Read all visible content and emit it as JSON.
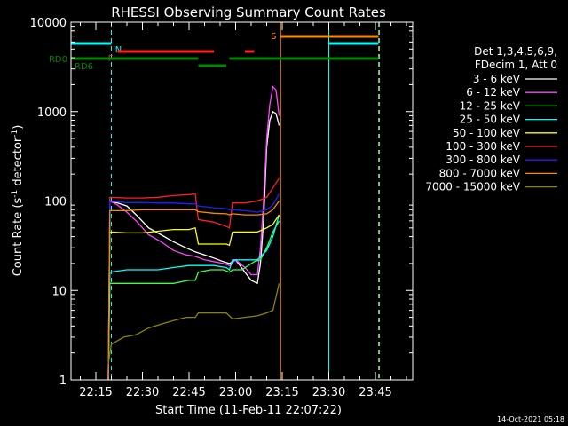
{
  "chart_data": {
    "type": "line",
    "title": "RHESSI Observing Summary Count Rates",
    "xlabel": "Start Time (11-Feb-11 22:07:22)",
    "ylabel_main": "Count Rate (s",
    "ylabel_sup1": "-1",
    "ylabel_mid": " detector",
    "ylabel_sup2": "-1",
    "ylabel_end": ")",
    "y_scale": "log",
    "ylim": [
      1,
      10000
    ],
    "xlim_min": [
      7,
      117
    ],
    "x_ticks": [
      {
        "min": 15,
        "label": "22:15"
      },
      {
        "min": 30,
        "label": "22:30"
      },
      {
        "min": 45,
        "label": "22:45"
      },
      {
        "min": 60,
        "label": "23:00"
      },
      {
        "min": 75,
        "label": "23:15"
      },
      {
        "min": 90,
        "label": "23:30"
      },
      {
        "min": 105,
        "label": "23:45"
      }
    ],
    "y_ticks": [
      {
        "v": 1,
        "label": "1"
      },
      {
        "v": 10,
        "label": "10"
      },
      {
        "v": 100,
        "label": "100"
      },
      {
        "v": 1000,
        "label": "1000"
      },
      {
        "v": 10000,
        "label": "10000"
      }
    ],
    "legend_title": [
      "Det 1,3,4,5,6,9,",
      "FDecim 1, Att 0"
    ],
    "series": [
      {
        "name": "3 - 6 keV",
        "color": "#ffffff",
        "points": [
          [
            19,
            1
          ],
          [
            19.5,
            100
          ],
          [
            22,
            95
          ],
          [
            25,
            88
          ],
          [
            28,
            70
          ],
          [
            32,
            50
          ],
          [
            36,
            42
          ],
          [
            40,
            35
          ],
          [
            44,
            30
          ],
          [
            47,
            27
          ],
          [
            50,
            25
          ],
          [
            53,
            23
          ],
          [
            56,
            21
          ],
          [
            58,
            20
          ],
          [
            60,
            22
          ],
          [
            63,
            16
          ],
          [
            65,
            13
          ],
          [
            67,
            12
          ],
          [
            68,
            20
          ],
          [
            69,
            60
          ],
          [
            70,
            400
          ],
          [
            71,
            800
          ],
          [
            72,
            1000
          ],
          [
            73,
            950
          ],
          [
            74,
            700
          ]
        ]
      },
      {
        "name": "6 - 12 keV",
        "color": "#ff44ff",
        "points": [
          [
            19,
            1
          ],
          [
            19.5,
            100
          ],
          [
            22,
            90
          ],
          [
            25,
            75
          ],
          [
            28,
            60
          ],
          [
            32,
            42
          ],
          [
            36,
            35
          ],
          [
            40,
            28
          ],
          [
            44,
            25
          ],
          [
            47,
            24
          ],
          [
            50,
            22
          ],
          [
            53,
            21
          ],
          [
            56,
            20
          ],
          [
            58,
            19
          ],
          [
            60,
            22
          ],
          [
            63,
            18
          ],
          [
            65,
            15
          ],
          [
            67,
            15
          ],
          [
            68,
            30
          ],
          [
            69,
            100
          ],
          [
            70,
            500
          ],
          [
            71,
            1200
          ],
          [
            72,
            1900
          ],
          [
            73,
            1750
          ],
          [
            74,
            900
          ]
        ]
      },
      {
        "name": "12 - 25 keV",
        "color": "#44ff44",
        "points": [
          [
            19,
            1
          ],
          [
            19.5,
            12
          ],
          [
            25,
            12
          ],
          [
            30,
            12
          ],
          [
            35,
            12
          ],
          [
            40,
            12
          ],
          [
            45,
            13
          ],
          [
            47,
            13
          ],
          [
            48,
            16
          ],
          [
            52,
            17
          ],
          [
            56,
            17
          ],
          [
            58,
            16
          ],
          [
            59,
            17
          ],
          [
            62,
            17
          ],
          [
            66,
            21
          ],
          [
            68,
            22
          ],
          [
            70,
            30
          ],
          [
            72,
            45
          ],
          [
            74,
            60
          ]
        ]
      },
      {
        "name": "25 - 50 keV",
        "color": "#00ffff",
        "points": [
          [
            19,
            1
          ],
          [
            19.5,
            16
          ],
          [
            25,
            17
          ],
          [
            30,
            17
          ],
          [
            35,
            17
          ],
          [
            40,
            18
          ],
          [
            45,
            19
          ],
          [
            47,
            19
          ],
          [
            48,
            19
          ],
          [
            53,
            19
          ],
          [
            57,
            18
          ],
          [
            58,
            17
          ],
          [
            59,
            22
          ],
          [
            63,
            22
          ],
          [
            67,
            22
          ],
          [
            70,
            28
          ],
          [
            72,
            40
          ],
          [
            74,
            70
          ]
        ]
      },
      {
        "name": "50 - 100 keV",
        "color": "#ffff00",
        "points": [
          [
            19,
            1
          ],
          [
            19.5,
            45
          ],
          [
            25,
            44
          ],
          [
            30,
            44
          ],
          [
            35,
            46
          ],
          [
            40,
            48
          ],
          [
            45,
            48
          ],
          [
            47,
            50
          ],
          [
            48,
            33
          ],
          [
            53,
            33
          ],
          [
            57,
            33
          ],
          [
            58,
            32
          ],
          [
            59,
            45
          ],
          [
            63,
            45
          ],
          [
            67,
            45
          ],
          [
            70,
            50
          ],
          [
            72,
            55
          ],
          [
            74,
            70
          ]
        ]
      },
      {
        "name": "100 - 300 keV",
        "color": "#ff2020",
        "points": [
          [
            19,
            1
          ],
          [
            19.5,
            110
          ],
          [
            25,
            108
          ],
          [
            30,
            108
          ],
          [
            35,
            110
          ],
          [
            40,
            115
          ],
          [
            45,
            118
          ],
          [
            47,
            120
          ],
          [
            48,
            62
          ],
          [
            53,
            58
          ],
          [
            57,
            52
          ],
          [
            58,
            50
          ],
          [
            59,
            95
          ],
          [
            63,
            95
          ],
          [
            67,
            100
          ],
          [
            70,
            110
          ],
          [
            72,
            140
          ],
          [
            74,
            180
          ]
        ]
      },
      {
        "name": "300 - 800 keV",
        "color": "#2020ff",
        "points": [
          [
            19,
            1
          ],
          [
            19.5,
            100
          ],
          [
            25,
            96
          ],
          [
            30,
            96
          ],
          [
            35,
            95
          ],
          [
            40,
            95
          ],
          [
            45,
            93
          ],
          [
            47,
            93
          ],
          [
            48,
            88
          ],
          [
            53,
            84
          ],
          [
            57,
            82
          ],
          [
            58,
            80
          ],
          [
            59,
            80
          ],
          [
            63,
            78
          ],
          [
            67,
            75
          ],
          [
            70,
            80
          ],
          [
            72,
            90
          ],
          [
            74,
            120
          ]
        ]
      },
      {
        "name": "800 - 7000 keV",
        "color": "#ff8800",
        "points": [
          [
            19,
            1
          ],
          [
            19.5,
            78
          ],
          [
            25,
            78
          ],
          [
            30,
            80
          ],
          [
            35,
            80
          ],
          [
            40,
            80
          ],
          [
            45,
            80
          ],
          [
            47,
            80
          ],
          [
            48,
            76
          ],
          [
            53,
            73
          ],
          [
            57,
            72
          ],
          [
            58,
            70
          ],
          [
            59,
            72
          ],
          [
            63,
            70
          ],
          [
            67,
            70
          ],
          [
            70,
            72
          ],
          [
            72,
            80
          ],
          [
            74,
            100
          ]
        ]
      },
      {
        "name": "7000 - 15000 keV",
        "color": "#888800",
        "points": [
          [
            19,
            1.5
          ],
          [
            20,
            2.5
          ],
          [
            24,
            3
          ],
          [
            28,
            3.2
          ],
          [
            32,
            3.8
          ],
          [
            36,
            4.2
          ],
          [
            40,
            4.6
          ],
          [
            44,
            5
          ],
          [
            47,
            5
          ],
          [
            48,
            5.6
          ],
          [
            53,
            5.6
          ],
          [
            57,
            5.6
          ],
          [
            58,
            5.2
          ],
          [
            59,
            4.8
          ],
          [
            63,
            5
          ],
          [
            67,
            5.2
          ],
          [
            70,
            5.6
          ],
          [
            72,
            6
          ],
          [
            74,
            12
          ]
        ]
      }
    ],
    "event_flags": [
      {
        "label": "N",
        "color": "#00ffff",
        "segments": [
          [
            7,
            20
          ],
          [
            90,
            106
          ]
        ],
        "level": 1
      },
      {
        "label": "F",
        "color": "#ff2020",
        "segments": [
          [
            22,
            53
          ],
          [
            63,
            66
          ]
        ],
        "level": 2
      },
      {
        "label": "S",
        "color": "#ff8800",
        "segments": [
          [
            74.5,
            106
          ]
        ],
        "level": 0
      },
      {
        "label": "RD0",
        "color": "#008800",
        "segments": [
          [
            7,
            48
          ],
          [
            58,
            106
          ]
        ],
        "level": 3
      },
      {
        "label": "RD6",
        "color": "#008800",
        "segments": [
          [
            48,
            57
          ]
        ],
        "level": 4
      }
    ],
    "vlines": [
      {
        "min": 7,
        "color": "#00ffff",
        "dash": false
      },
      {
        "min": 20,
        "color": "#00ffff",
        "dash": true
      },
      {
        "min": 74.5,
        "color": "#ff8800",
        "dash": false
      },
      {
        "min": 90,
        "color": "#00ffff",
        "dash": false
      },
      {
        "min": 106,
        "color": "#ff8800",
        "dash": true
      },
      {
        "min": 106.3,
        "color": "#00ffff",
        "dash": true
      }
    ],
    "grid": false,
    "legend_placement": "right"
  },
  "timestamp": "14-Oct-2021 05:18"
}
